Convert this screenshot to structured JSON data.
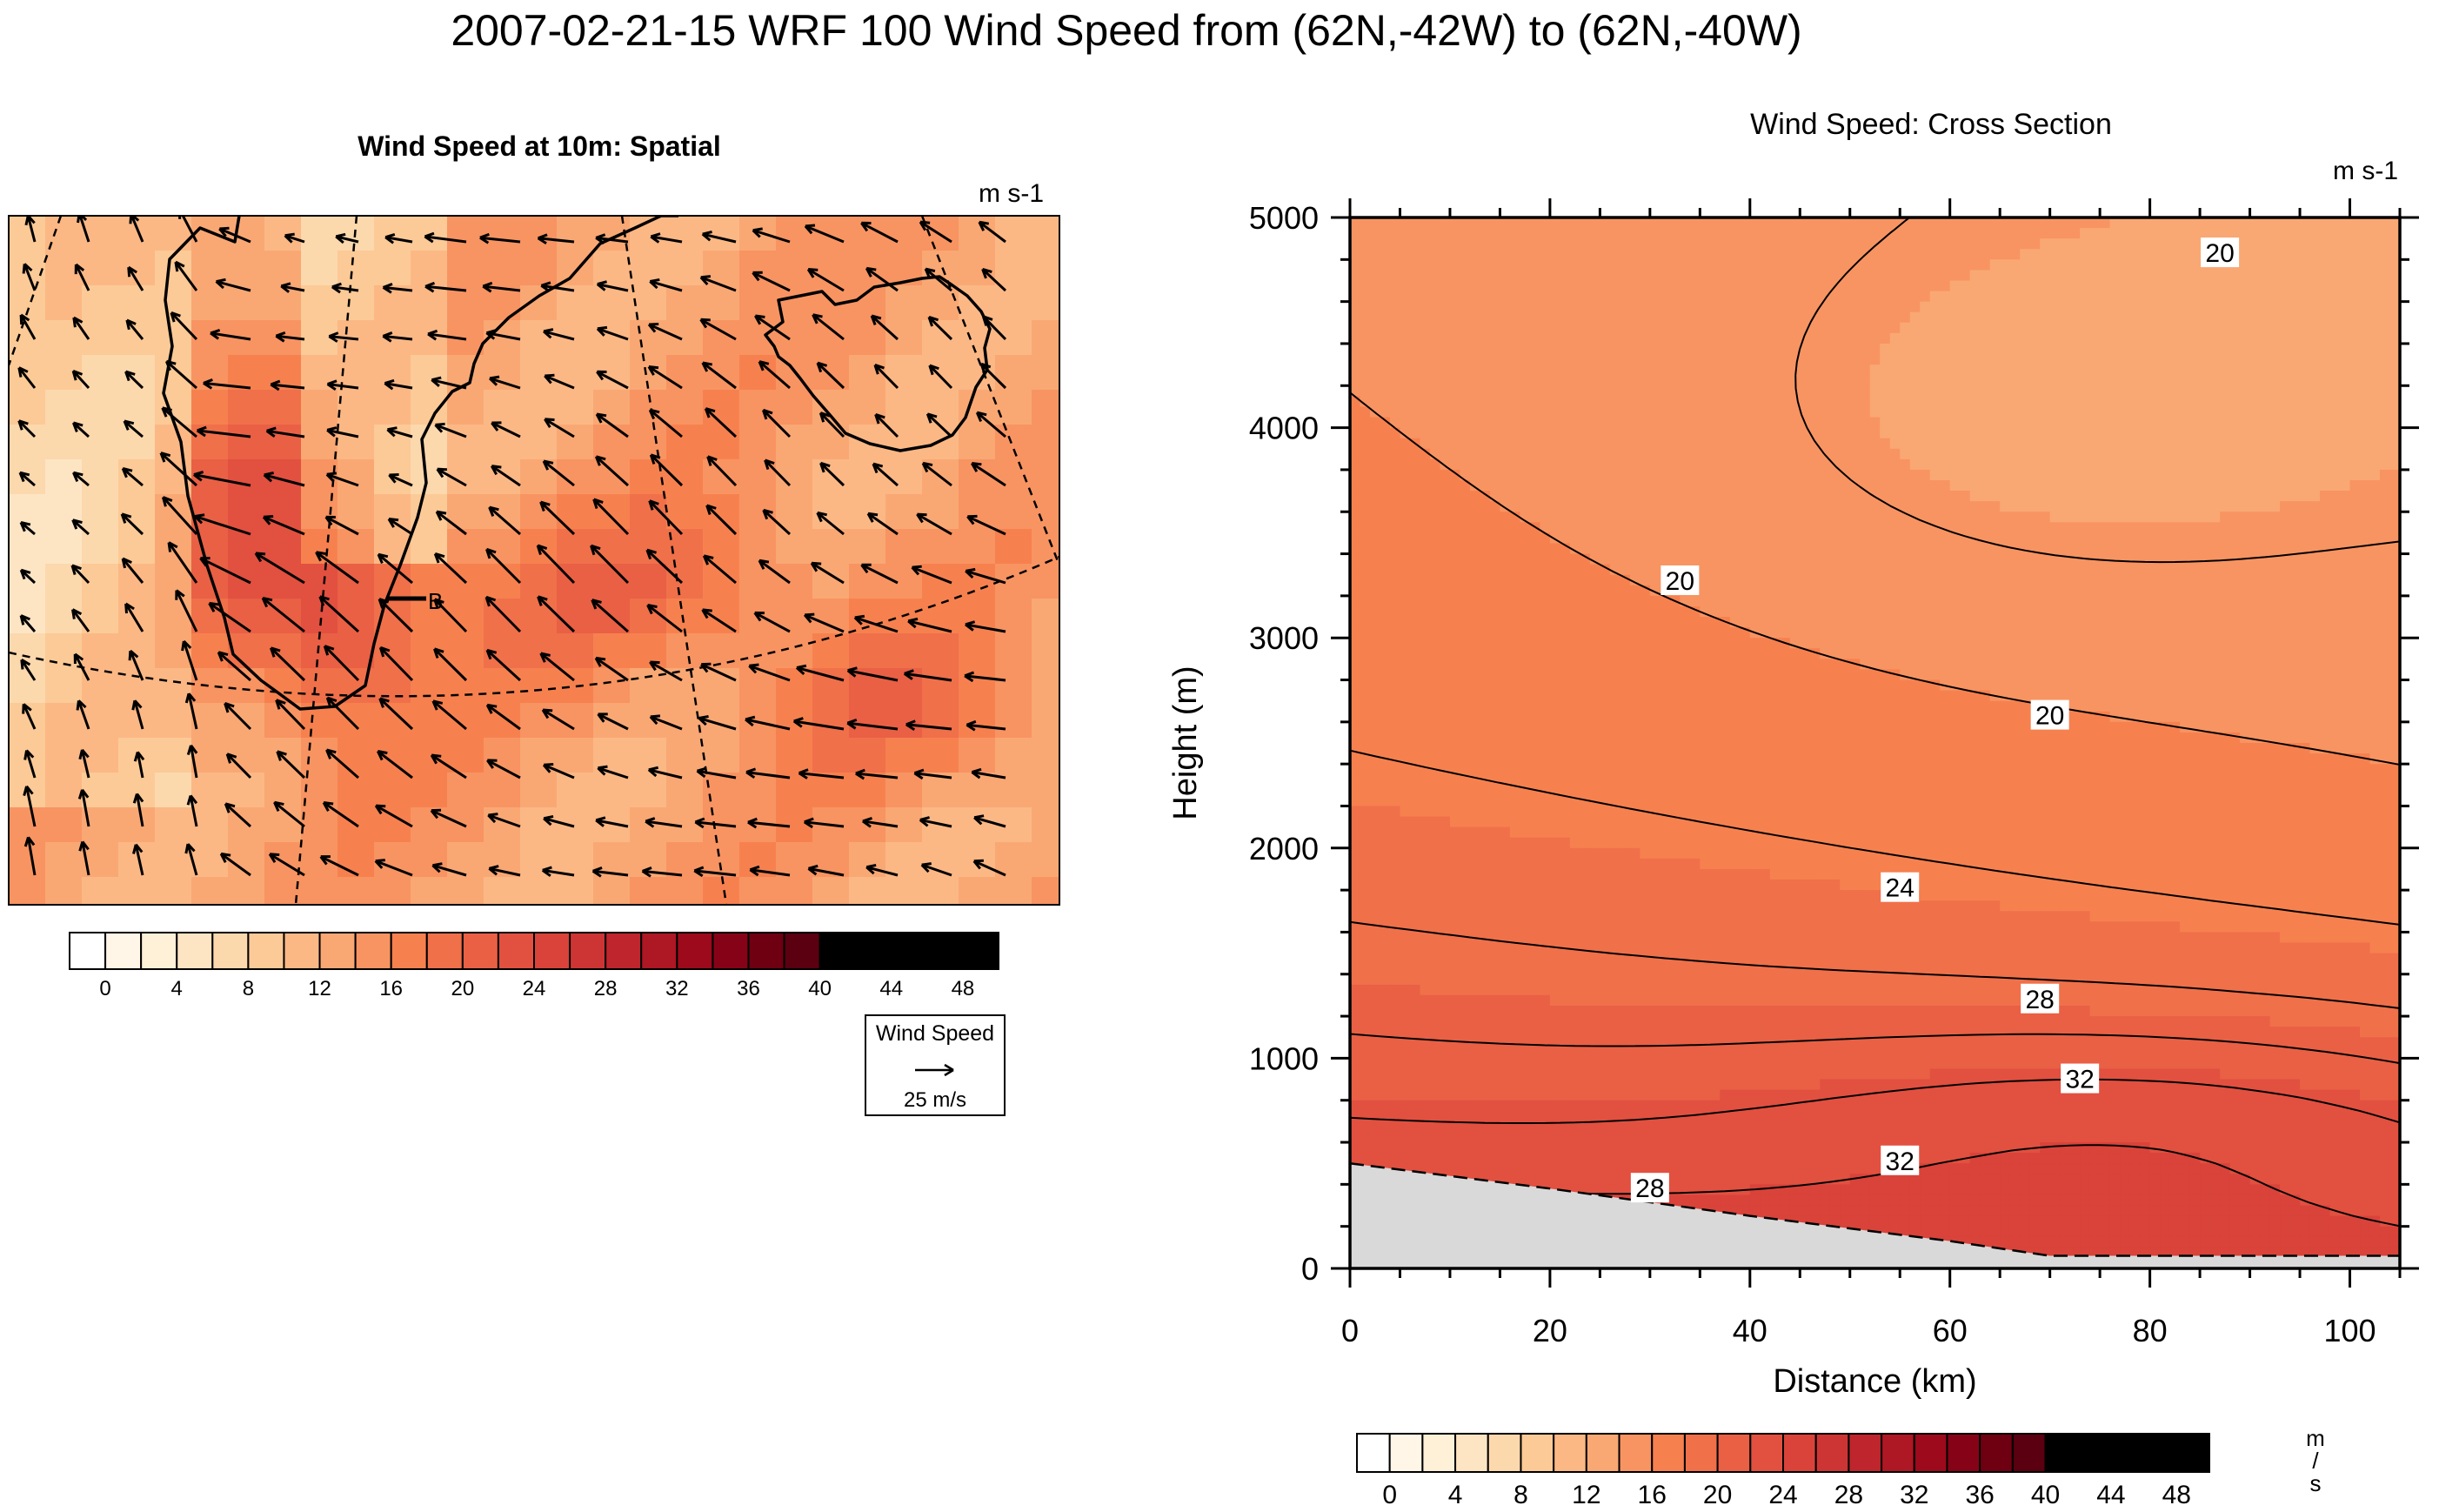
{
  "page": {
    "title": "2007-02-21-15 WRF 100 Wind Speed from (62N,-42W) to (62N,-40W)"
  },
  "palette": [
    "#ffffff",
    "#fff6e8",
    "#fff0d8",
    "#fde5c4",
    "#fcd8ad",
    "#fcca96",
    "#fbb885",
    "#f9a874",
    "#f89462",
    "#f6814f",
    "#f0704a",
    "#e96045",
    "#e25040",
    "#d9433a",
    "#cd3534",
    "#bf252c",
    "#ae1724",
    "#9c0a1c",
    "#860317",
    "#6e0012",
    "#5a0010"
  ],
  "map": {
    "title": "Wind Speed at 10m: Spatial",
    "units": "m s-1",
    "section_end_label": "B",
    "colorbar_labels": [
      "0",
      "4",
      "8",
      "12",
      "16",
      "20",
      "24",
      "28",
      "32",
      "36",
      "40",
      "44",
      "48"
    ],
    "reference_vector": {
      "title": "Wind Speed",
      "label": "25 m/s",
      "value_ms": 25
    },
    "land_color": "#d9d9d9"
  },
  "chart_data": [
    {
      "type": "heatmap",
      "title": "Wind Speed: Cross Section",
      "units": "m s-1",
      "xlabel": "Distance (km)",
      "ylabel": "Height (m)",
      "xlim": [
        0,
        105
      ],
      "ylim": [
        0,
        5000
      ],
      "x_ticks": [
        0,
        20,
        40,
        60,
        80,
        100
      ],
      "y_ticks": [
        0,
        1000,
        2000,
        3000,
        4000,
        5000
      ],
      "contour_interval": 2,
      "terrain_height_m": {
        "x": [
          0,
          20,
          40,
          60,
          70,
          105
        ],
        "y": [
          500,
          380,
          250,
          130,
          60,
          60
        ]
      },
      "contour_labels": [
        {
          "text": "20",
          "x": 87,
          "y": 4830
        },
        {
          "text": "20",
          "x": 33,
          "y": 3270
        },
        {
          "text": "20",
          "x": 70,
          "y": 2630
        },
        {
          "text": "24",
          "x": 55,
          "y": 1810
        },
        {
          "text": "28",
          "x": 69,
          "y": 1280
        },
        {
          "text": "32",
          "x": 73,
          "y": 900
        },
        {
          "text": "32",
          "x": 55,
          "y": 510
        },
        {
          "text": "28",
          "x": 30,
          "y": 380
        }
      ],
      "colorbar_labels": [
        "0",
        "4",
        "8",
        "12",
        "16",
        "20",
        "24",
        "28",
        "32",
        "36",
        "40",
        "44",
        "48"
      ],
      "colorbar_units": [
        "m",
        "/",
        "s"
      ]
    }
  ]
}
